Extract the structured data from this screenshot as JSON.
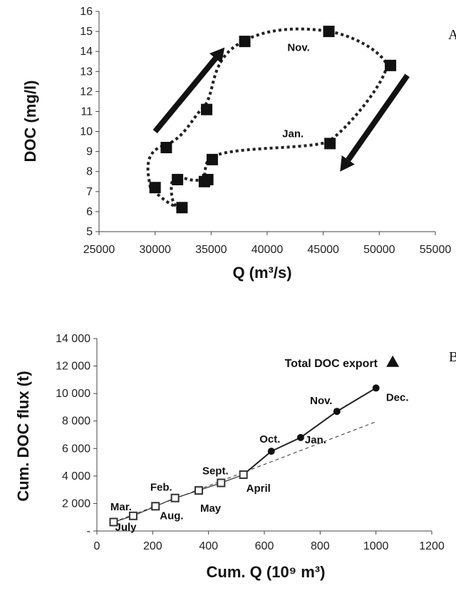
{
  "chart_data": [
    {
      "type": "scatter",
      "panel_letter": "A",
      "title": "",
      "xlabel": "Q (m³/s)",
      "ylabel": "DOC (mg/l)",
      "xlim": [
        25000,
        55000
      ],
      "ylim": [
        5,
        16
      ],
      "xticks": [
        "25000",
        "30000",
        "35000",
        "40000",
        "45000",
        "50000",
        "55000"
      ],
      "yticks": [
        "5",
        "6",
        "7",
        "8",
        "9",
        "10",
        "11",
        "12",
        "13",
        "14",
        "15",
        "16"
      ],
      "marker": "square",
      "points": [
        {
          "x": 30000,
          "y": 7.2
        },
        {
          "x": 31000,
          "y": 9.2
        },
        {
          "x": 32000,
          "y": 7.6
        },
        {
          "x": 32400,
          "y": 6.2
        },
        {
          "x": 34400,
          "y": 7.5
        },
        {
          "x": 34700,
          "y": 7.6
        },
        {
          "x": 35100,
          "y": 8.6
        },
        {
          "x": 34600,
          "y": 11.1
        },
        {
          "x": 38000,
          "y": 14.5
        },
        {
          "x": 45500,
          "y": 15.0
        },
        {
          "x": 51000,
          "y": 13.3
        },
        {
          "x": 45600,
          "y": 9.4
        }
      ],
      "annotations": [
        {
          "text": "Nov.",
          "x": 42800,
          "y": 14.2
        },
        {
          "text": "Jan.",
          "x": 42300,
          "y": 9.9
        }
      ],
      "arrows": [
        {
          "direction": "up-right",
          "x1": 30000,
          "y1": 10.0,
          "x2": 36200,
          "y2": 14.2
        },
        {
          "direction": "down-left",
          "x1": 52500,
          "y1": 12.8,
          "x2": 46500,
          "y2": 8.0
        }
      ]
    },
    {
      "type": "scatter",
      "panel_letter": "B",
      "title": "",
      "xlabel": "Cum. Q (10⁹ m³)",
      "ylabel": "Cum. DOC flux (t)",
      "xlim": [
        0,
        1200
      ],
      "ylim": [
        0,
        14000
      ],
      "xticks": [
        "0",
        "200",
        "400",
        "600",
        "800",
        "1000",
        "1200"
      ],
      "yticks": [
        "-",
        "2 000",
        "4 000",
        "6 000",
        "8 000",
        "10 000",
        "12 000",
        "14 000"
      ],
      "series": [
        {
          "marker": "open-square",
          "points": [
            {
              "label": "July",
              "x": 60,
              "y": 650
            },
            {
              "label": "Mar.",
              "x": 130,
              "y": 1100
            },
            {
              "label": "Aug.",
              "x": 210,
              "y": 1800
            },
            {
              "label": "Feb.",
              "x": 280,
              "y": 2400
            },
            {
              "label": "May",
              "x": 365,
              "y": 2950
            },
            {
              "label": "Sept.",
              "x": 445,
              "y": 3500
            },
            {
              "label": "April",
              "x": 525,
              "y": 4100
            }
          ]
        },
        {
          "marker": "filled-circle",
          "points": [
            {
              "label": "Oct.",
              "x": 625,
              "y": 5800
            },
            {
              "label": "Jan.",
              "x": 730,
              "y": 6800
            },
            {
              "label": "Nov.",
              "x": 860,
              "y": 8700
            },
            {
              "label": "Dec.",
              "x": 1000,
              "y": 10400
            }
          ]
        }
      ],
      "trend_line_dashed": {
        "x1": 60,
        "y1": 650,
        "x2": 1000,
        "y2": 7950
      },
      "annotation": {
        "text": "Total DOC export",
        "x": 1060,
        "y": 12300,
        "marker": "filled-triangle"
      }
    }
  ]
}
